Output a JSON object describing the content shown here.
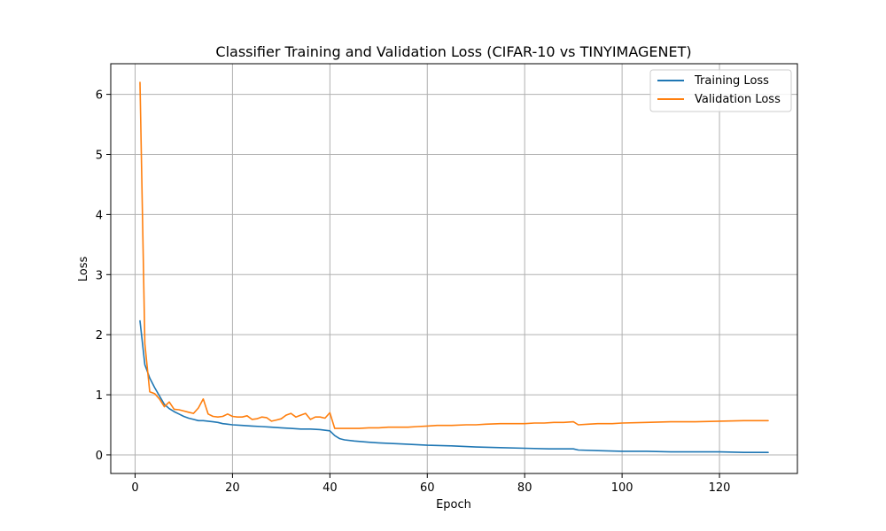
{
  "chart_data": {
    "type": "line",
    "title": "Classifier Training and Validation Loss (CIFAR-10 vs TINYIMAGENET)",
    "xlabel": "Epoch",
    "ylabel": "Loss",
    "xlim": [
      -5,
      136
    ],
    "ylim": [
      -0.31,
      6.51
    ],
    "xticks": [
      0,
      20,
      40,
      60,
      80,
      100,
      120
    ],
    "yticks": [
      0,
      1,
      2,
      3,
      4,
      5,
      6
    ],
    "grid": true,
    "legend_position": "top-right",
    "colors": {
      "train": "#1f77b4",
      "val": "#ff7f0e",
      "grid": "#b0b0b0"
    },
    "series": [
      {
        "name": "Training Loss",
        "key": "train",
        "points": [
          [
            1,
            2.23
          ],
          [
            2,
            1.5
          ],
          [
            3,
            1.28
          ],
          [
            4,
            1.12
          ],
          [
            5,
            0.98
          ],
          [
            6,
            0.84
          ],
          [
            7,
            0.77
          ],
          [
            8,
            0.72
          ],
          [
            9,
            0.68
          ],
          [
            10,
            0.64
          ],
          [
            11,
            0.61
          ],
          [
            12,
            0.59
          ],
          [
            13,
            0.57
          ],
          [
            14,
            0.57
          ],
          [
            15,
            0.56
          ],
          [
            16,
            0.55
          ],
          [
            17,
            0.54
          ],
          [
            18,
            0.52
          ],
          [
            19,
            0.51
          ],
          [
            20,
            0.5
          ],
          [
            22,
            0.49
          ],
          [
            24,
            0.48
          ],
          [
            26,
            0.47
          ],
          [
            28,
            0.46
          ],
          [
            30,
            0.45
          ],
          [
            32,
            0.44
          ],
          [
            34,
            0.43
          ],
          [
            36,
            0.43
          ],
          [
            38,
            0.42
          ],
          [
            40,
            0.4
          ],
          [
            41,
            0.32
          ],
          [
            42,
            0.27
          ],
          [
            43,
            0.25
          ],
          [
            45,
            0.23
          ],
          [
            48,
            0.21
          ],
          [
            50,
            0.2
          ],
          [
            55,
            0.18
          ],
          [
            60,
            0.16
          ],
          [
            65,
            0.15
          ],
          [
            70,
            0.13
          ],
          [
            75,
            0.12
          ],
          [
            80,
            0.11
          ],
          [
            85,
            0.1
          ],
          [
            88,
            0.1
          ],
          [
            90,
            0.1
          ],
          [
            91,
            0.08
          ],
          [
            95,
            0.07
          ],
          [
            100,
            0.06
          ],
          [
            105,
            0.06
          ],
          [
            110,
            0.05
          ],
          [
            115,
            0.05
          ],
          [
            120,
            0.05
          ],
          [
            125,
            0.04
          ],
          [
            130,
            0.04
          ]
        ]
      },
      {
        "name": "Validation Loss",
        "key": "val",
        "points": [
          [
            1,
            6.2
          ],
          [
            2,
            1.85
          ],
          [
            3,
            1.05
          ],
          [
            4,
            1.02
          ],
          [
            5,
            0.93
          ],
          [
            6,
            0.8
          ],
          [
            7,
            0.88
          ],
          [
            8,
            0.76
          ],
          [
            9,
            0.75
          ],
          [
            10,
            0.73
          ],
          [
            11,
            0.71
          ],
          [
            12,
            0.69
          ],
          [
            13,
            0.78
          ],
          [
            14,
            0.93
          ],
          [
            15,
            0.68
          ],
          [
            16,
            0.64
          ],
          [
            17,
            0.63
          ],
          [
            18,
            0.64
          ],
          [
            19,
            0.68
          ],
          [
            20,
            0.64
          ],
          [
            21,
            0.63
          ],
          [
            22,
            0.63
          ],
          [
            23,
            0.65
          ],
          [
            24,
            0.59
          ],
          [
            25,
            0.6
          ],
          [
            26,
            0.63
          ],
          [
            27,
            0.62
          ],
          [
            28,
            0.56
          ],
          [
            29,
            0.58
          ],
          [
            30,
            0.6
          ],
          [
            31,
            0.66
          ],
          [
            32,
            0.69
          ],
          [
            33,
            0.63
          ],
          [
            34,
            0.66
          ],
          [
            35,
            0.69
          ],
          [
            36,
            0.59
          ],
          [
            37,
            0.63
          ],
          [
            38,
            0.63
          ],
          [
            39,
            0.61
          ],
          [
            40,
            0.7
          ],
          [
            41,
            0.44
          ],
          [
            42,
            0.44
          ],
          [
            44,
            0.44
          ],
          [
            46,
            0.44
          ],
          [
            48,
            0.45
          ],
          [
            50,
            0.45
          ],
          [
            52,
            0.46
          ],
          [
            54,
            0.46
          ],
          [
            56,
            0.46
          ],
          [
            58,
            0.47
          ],
          [
            60,
            0.48
          ],
          [
            62,
            0.49
          ],
          [
            65,
            0.49
          ],
          [
            68,
            0.5
          ],
          [
            70,
            0.5
          ],
          [
            72,
            0.51
          ],
          [
            75,
            0.52
          ],
          [
            78,
            0.52
          ],
          [
            80,
            0.52
          ],
          [
            82,
            0.53
          ],
          [
            84,
            0.53
          ],
          [
            86,
            0.54
          ],
          [
            88,
            0.54
          ],
          [
            90,
            0.55
          ],
          [
            91,
            0.5
          ],
          [
            93,
            0.51
          ],
          [
            95,
            0.52
          ],
          [
            98,
            0.52
          ],
          [
            100,
            0.53
          ],
          [
            105,
            0.54
          ],
          [
            110,
            0.55
          ],
          [
            115,
            0.55
          ],
          [
            120,
            0.56
          ],
          [
            125,
            0.57
          ],
          [
            130,
            0.57
          ]
        ]
      }
    ]
  }
}
